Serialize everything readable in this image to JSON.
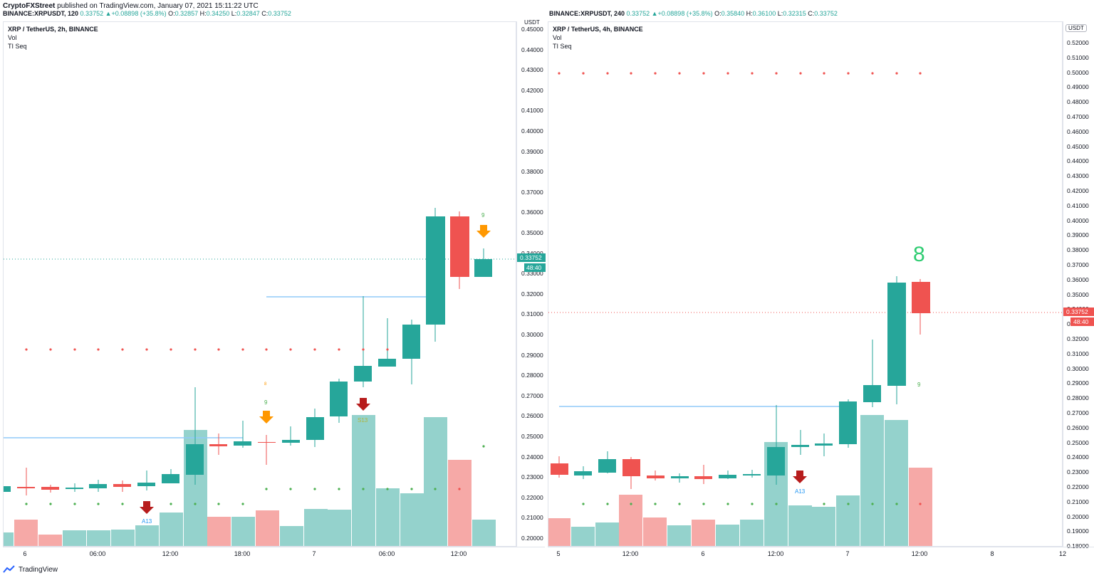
{
  "header": {
    "author": "CryptoFXStreet",
    "published_text": "published on TradingView.com, January 07, 2021 15:11:22 UTC"
  },
  "panes": [
    {
      "ohlc_symbol": "BINANCE:XRPUSDT, 120",
      "ohlc_last": "0.33752",
      "ohlc_change": "+0.08898 (+35.8%)",
      "ohlc_O": "0.32857",
      "ohlc_H": "0.34250",
      "ohlc_L": "0.32847",
      "ohlc_C": "0.33752",
      "legend_title": "XRP / TetherUS, 2h, BINANCE",
      "legend_vol": "Vol",
      "legend_ti": "TI Seq",
      "unit": "USDT",
      "price_ticks": [
        "0.45000",
        "0.44000",
        "0.43000",
        "0.42000",
        "0.41000",
        "0.40000",
        "0.39000",
        "0.38000",
        "0.37000",
        "0.36000",
        "0.35000",
        "0.34000",
        "0.33000",
        "0.32000",
        "0.31000",
        "0.30000",
        "0.29000",
        "0.28000",
        "0.27000",
        "0.26000",
        "0.25000",
        "0.24000",
        "0.23000",
        "0.22000",
        "0.21000",
        "0.20000"
      ],
      "price_label": "0.33752",
      "countdown_label": "48:40",
      "x_ticks": [
        "6",
        "06:00",
        "12:00",
        "18:00",
        "7",
        "06:00",
        "12:00"
      ],
      "annotations": {
        "a13": "A13",
        "s13": "S13",
        "nine_1": "9",
        "nine_2": "9",
        "eight": "8"
      }
    },
    {
      "ohlc_symbol": "BINANCE:XRPUSDT, 240",
      "ohlc_last": "0.33752",
      "ohlc_change": "+0.08898 (+35.8%)",
      "ohlc_O": "0.35840",
      "ohlc_H": "0.36100",
      "ohlc_L": "0.32315",
      "ohlc_C": "0.33752",
      "legend_title": "XRP / TetherUS, 4h, BINANCE",
      "legend_vol": "Vol",
      "legend_ti": "TI Seq",
      "unit": "USDT",
      "price_ticks": [
        "0.52000",
        "0.51000",
        "0.50000",
        "0.49000",
        "0.48000",
        "0.47000",
        "0.46000",
        "0.45000",
        "0.44000",
        "0.43000",
        "0.42000",
        "0.41000",
        "0.40000",
        "0.39000",
        "0.38000",
        "0.37000",
        "0.36000",
        "0.35000",
        "0.34000",
        "0.33000",
        "0.32000",
        "0.31000",
        "0.30000",
        "0.29000",
        "0.28000",
        "0.27000",
        "0.26000",
        "0.25000",
        "0.24000",
        "0.23000",
        "0.22000",
        "0.21000",
        "0.20000",
        "0.19000",
        "0.18000"
      ],
      "price_label": "0.33752",
      "countdown_label": "48:40",
      "x_ticks": [
        "5",
        "12:00",
        "6",
        "12:00",
        "7",
        "12:00",
        "8",
        "12"
      ],
      "annotations": {
        "a13": "A13",
        "nine_1": "9",
        "eight": "8"
      }
    }
  ],
  "colors": {
    "up": "#26a69a",
    "down": "#ef5350",
    "vol_up": "#94d2cc",
    "vol_down": "#f6a9a7",
    "support": "#90caf9",
    "arrow_orange": "#ff9800",
    "arrow_red": "#b71c1c"
  },
  "footer": {
    "brand": "TradingView"
  }
}
